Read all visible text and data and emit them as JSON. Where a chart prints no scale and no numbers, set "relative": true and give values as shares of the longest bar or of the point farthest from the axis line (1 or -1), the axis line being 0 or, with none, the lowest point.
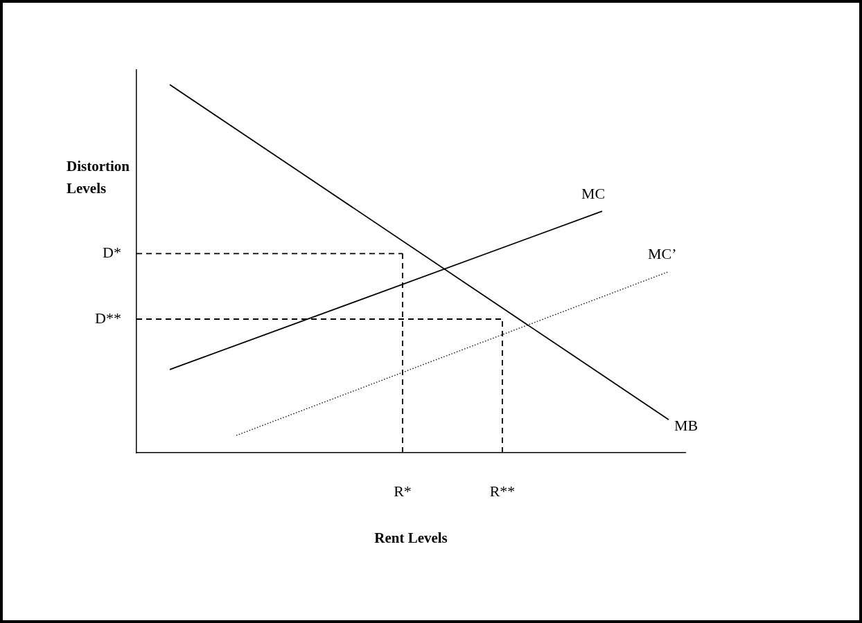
{
  "chart_data": {
    "type": "line",
    "relative": true,
    "tick_labels": "x",
    "xlabel": "Rent Levels",
    "ylabel": "Distortion Levels",
    "legend": false,
    "grid": false,
    "marker": "none",
    "categories": [
      null,
      null,
      null,
      null,
      null,
      null,
      null,
      null,
      null,
      null,
      null,
      null,
      null,
      null,
      null,
      null,
      "R*",
      null,
      null,
      null,
      null,
      null,
      "R**",
      null,
      null,
      null,
      null,
      null,
      null,
      null,
      null,
      null,
      null,
      null
    ],
    "series": [
      {
        "name": "MB",
        "color": "#000000",
        "line_style": "solid",
        "values": [
          null,
          null,
          1,
          null,
          null,
          null,
          null,
          null,
          null,
          null,
          null,
          null,
          null,
          null,
          null,
          null,
          null,
          null,
          null,
          null,
          null,
          null,
          null,
          null,
          null,
          null,
          null,
          null,
          null,
          null,
          null,
          null,
          0.09,
          null
        ]
      },
      {
        "name": "MC",
        "color": "#000000",
        "line_style": "solid",
        "values": [
          null,
          null,
          0.226,
          null,
          null,
          null,
          null,
          null,
          null,
          null,
          null,
          null,
          null,
          null,
          null,
          null,
          null,
          null,
          null,
          null,
          null,
          null,
          null,
          null,
          null,
          null,
          null,
          null,
          0.656,
          null,
          null,
          null,
          null,
          null
        ]
      },
      {
        "name": "MC’",
        "color": "#000000",
        "line_style": "dotted",
        "values": [
          null,
          null,
          null,
          null,
          null,
          null,
          0.047,
          null,
          null,
          null,
          null,
          null,
          null,
          null,
          null,
          null,
          null,
          null,
          null,
          null,
          null,
          null,
          null,
          null,
          null,
          null,
          null,
          null,
          null,
          null,
          null,
          null,
          0.492,
          null
        ]
      }
    ],
    "ref_lines": [
      {
        "axis": "y",
        "value": 0.541,
        "label": "D*",
        "color": "#000000",
        "line_style": "dashed"
      },
      {
        "axis": "y",
        "value": 0.363,
        "label": "D**",
        "color": "#000000",
        "line_style": "dashed"
      },
      {
        "axis": "x",
        "value": "R*",
        "color": "#000000",
        "line_style": "dashed"
      },
      {
        "axis": "x",
        "value": "R**",
        "color": "#000000",
        "line_style": "dashed"
      }
    ]
  }
}
